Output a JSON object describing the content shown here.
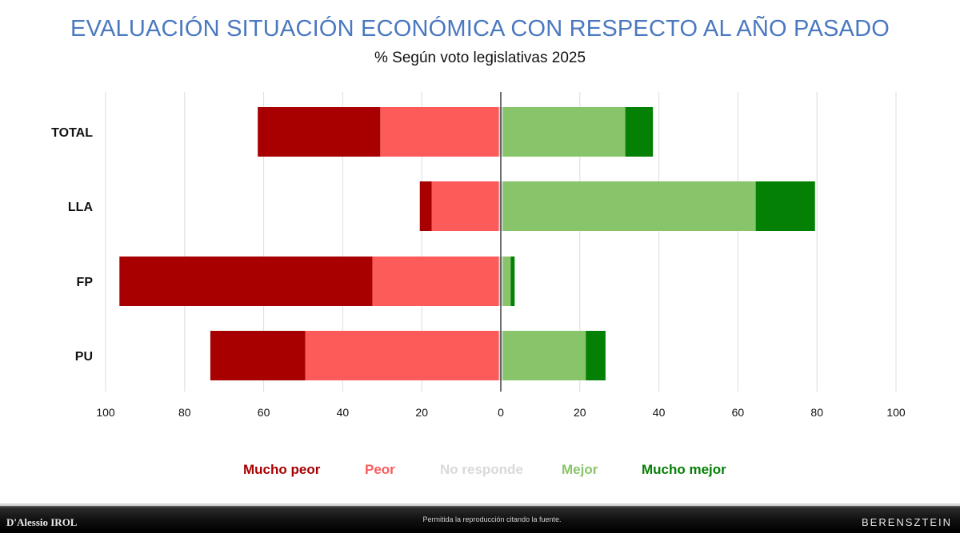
{
  "title": "EVALUACIÓN SITUACIÓN ECONÓMICA CON RESPECTO AL AÑO PASADO",
  "subtitle": "% Según voto legislativas 2025",
  "chart_data": {
    "type": "bar",
    "orientation": "horizontal-diverging",
    "categories": [
      "TOTAL",
      "LLA",
      "FP",
      "PU"
    ],
    "x_ticks": [
      "100",
      "80",
      "60",
      "40",
      "20",
      "0",
      "20",
      "40",
      "60",
      "80",
      "100"
    ],
    "xlim": [
      -100,
      100
    ],
    "grid": true,
    "legend_position": "bottom",
    "series": [
      {
        "name": "Mucho peor",
        "side": "negative",
        "color": "#a80000",
        "values": [
          31,
          3,
          64,
          24
        ]
      },
      {
        "name": "Peor",
        "side": "negative",
        "color": "#fd5a5a",
        "values": [
          30,
          17,
          32,
          49
        ]
      },
      {
        "name": "No responde",
        "side": "center",
        "color": "#d9d9d9",
        "values": [
          1,
          1,
          1,
          1
        ]
      },
      {
        "name": "Mejor",
        "side": "positive",
        "color": "#88c46a",
        "values": [
          31,
          64,
          2,
          21
        ]
      },
      {
        "name": "Mucho mejor",
        "side": "positive",
        "color": "#048004",
        "values": [
          7,
          15,
          1,
          5
        ]
      }
    ]
  },
  "footer": {
    "left_logo": "D'Alessio IROL",
    "note": "Permitida la reproducción citando la fuente.",
    "right_logo": "BERENSZTEIN"
  }
}
